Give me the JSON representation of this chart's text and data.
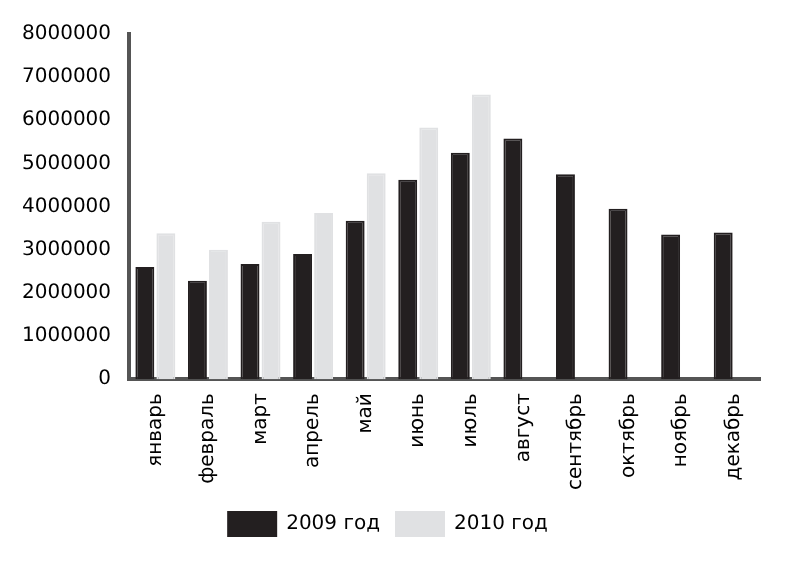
{
  "chart_data": {
    "type": "bar",
    "categories": [
      "январь",
      "февраль",
      "март",
      "апрель",
      "май",
      "июнь",
      "июль",
      "август",
      "сентябрь",
      "октябрь",
      "ноябрь",
      "декабрь"
    ],
    "series": [
      {
        "name": "2009 год",
        "color": "#231f20",
        "values": [
          2600000,
          2280000,
          2670000,
          2900000,
          3670000,
          4620000,
          5250000,
          5580000,
          4750000,
          3950000,
          3350000,
          3400000
        ]
      },
      {
        "name": "2010 год",
        "color": "#e0e1e3",
        "values": [
          3380000,
          3000000,
          3650000,
          3850000,
          4770000,
          5830000,
          6600000,
          null,
          null,
          null,
          null,
          null
        ]
      }
    ],
    "ylim": [
      0,
      8000000
    ],
    "yticks": [
      0,
      1000000,
      2000000,
      3000000,
      4000000,
      5000000,
      6000000,
      7000000,
      8000000
    ],
    "grid": false,
    "legend": "bottom"
  }
}
